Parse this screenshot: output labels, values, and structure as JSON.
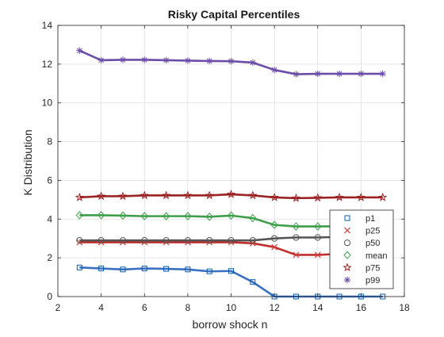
{
  "chart_data": {
    "type": "line",
    "title": "Risky Capital Percentiles",
    "xlabel": "borrow shock n",
    "ylabel": "K Distribution",
    "xlim": [
      2,
      18
    ],
    "ylim": [
      0,
      14
    ],
    "xticks": [
      2,
      4,
      6,
      8,
      10,
      12,
      14,
      16,
      18
    ],
    "yticks": [
      0,
      2,
      4,
      6,
      8,
      10,
      12,
      14
    ],
    "grid": true,
    "legend_position": "lower-right (overlapping plot)",
    "x": [
      3,
      4,
      5,
      6,
      7,
      8,
      9,
      10,
      11,
      12,
      13,
      14,
      15,
      16,
      17
    ],
    "series": [
      {
        "name": "p1",
        "line_color": "#3a6fc2",
        "marker_color": "#0a5ca8",
        "marker": "square",
        "values": [
          1.5,
          1.45,
          1.4,
          1.45,
          1.43,
          1.4,
          1.3,
          1.32,
          0.75,
          0.0,
          0.0,
          0.0,
          0.0,
          0.0,
          0.0
        ]
      },
      {
        "name": "p25",
        "line_color": "#c02e2e",
        "marker_color": "#d43c3c",
        "marker": "x",
        "values": [
          2.8,
          2.8,
          2.8,
          2.8,
          2.8,
          2.8,
          2.8,
          2.8,
          2.75,
          2.55,
          2.15,
          2.15,
          2.2,
          2.15,
          2.05
        ]
      },
      {
        "name": "p50",
        "line_color": "#555555",
        "marker_color": "#555555",
        "marker": "circle",
        "values": [
          2.9,
          2.9,
          2.9,
          2.9,
          2.9,
          2.9,
          2.9,
          2.9,
          2.9,
          3.0,
          3.05,
          3.05,
          3.08,
          3.08,
          3.1
        ]
      },
      {
        "name": "mean",
        "line_color": "#3f9e4a",
        "marker_color": "#3f9e4a",
        "marker": "diamond",
        "values": [
          4.2,
          4.2,
          4.18,
          4.15,
          4.15,
          4.15,
          4.12,
          4.18,
          4.05,
          3.7,
          3.62,
          3.62,
          3.63,
          3.62,
          3.62
        ]
      },
      {
        "name": "p75",
        "line_color": "#9b2323",
        "marker_color": "#9b2323",
        "marker": "pentagram",
        "values": [
          5.12,
          5.18,
          5.18,
          5.22,
          5.22,
          5.22,
          5.22,
          5.28,
          5.22,
          5.12,
          5.08,
          5.1,
          5.12,
          5.12,
          5.12
        ]
      },
      {
        "name": "p99",
        "line_color": "#6b4ca8",
        "marker_color": "#6b4ca8",
        "marker": "asterisk",
        "values": [
          12.7,
          12.2,
          12.22,
          12.22,
          12.2,
          12.18,
          12.16,
          12.15,
          12.08,
          11.7,
          11.48,
          11.5,
          11.5,
          11.5,
          11.5
        ]
      }
    ]
  }
}
